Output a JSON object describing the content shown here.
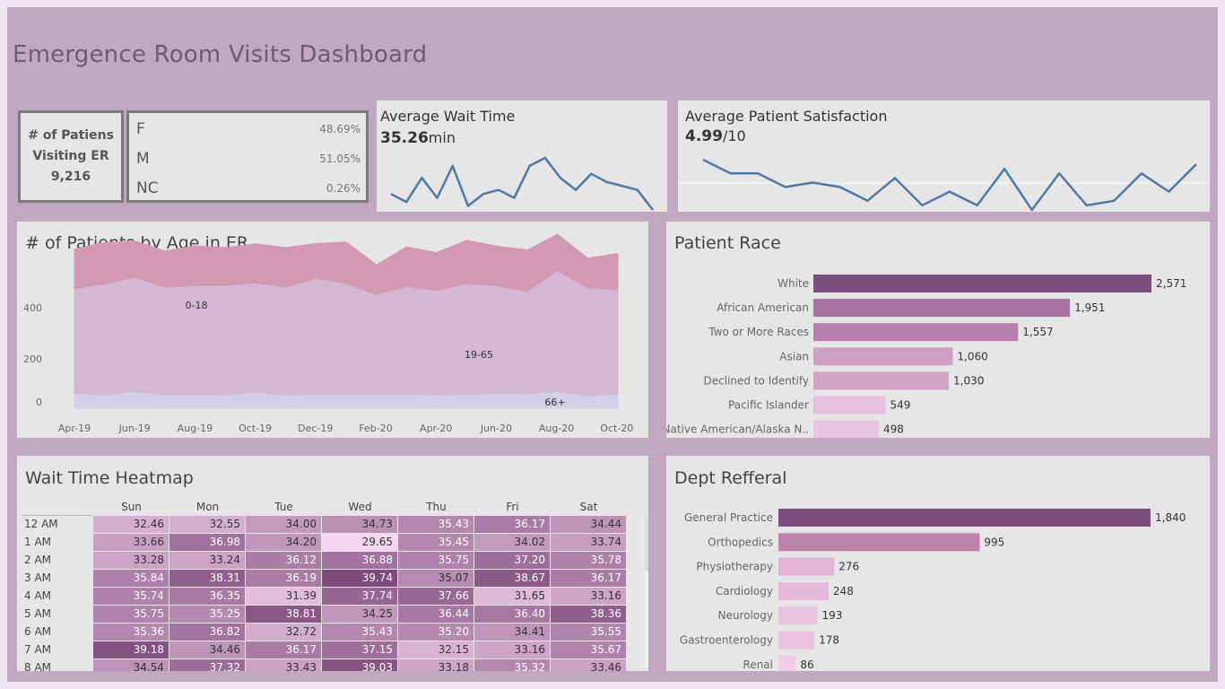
{
  "title": "Emergence Room Visits Dashboard",
  "kpi": {
    "count_label_1": "# of Patiens",
    "count_label_2": "Visiting ER",
    "count_value": "9,216",
    "gender": [
      {
        "label": "F",
        "pct": "48.69%"
      },
      {
        "label": "M",
        "pct": "51.05%"
      },
      {
        "label": "NC",
        "pct": "0.26%"
      }
    ],
    "wait_title": "Average Wait Time",
    "wait_value": "35.26",
    "wait_unit": "min",
    "wait_trend": [
      28,
      26,
      32,
      27,
      35,
      25,
      28,
      29,
      27,
      35,
      37,
      32,
      29,
      33,
      31,
      30,
      29,
      24
    ],
    "sat_title": "Average Patient Satisfaction",
    "sat_value": "4.99",
    "sat_unit": "/10",
    "sat_trend": [
      5.4,
      5.1,
      5.1,
      4.8,
      4.9,
      4.8,
      4.5,
      5.0,
      4.4,
      4.7,
      4.4,
      5.2,
      4.3,
      5.1,
      4.4,
      4.5,
      5.1,
      4.7,
      5.3
    ]
  },
  "age_panel": {
    "title": "# of Patients by Age in ER",
    "ytick_labels": [
      "400",
      "200",
      "0"
    ],
    "xtick_labels": [
      "Apr-19",
      "Jun-19",
      "Aug-19",
      "Oct-19",
      "Dec-19",
      "Feb-20",
      "Apr-20",
      "Jun-20",
      "Aug-20",
      "Oct-20"
    ],
    "band_labels": [
      "0-18",
      "19-65",
      "66+"
    ],
    "colors": {
      "young": "#d399b1",
      "adult": "#d4b7d2",
      "senior": "#d4d0ea"
    }
  },
  "race_panel": {
    "title": "Patient Race",
    "bars": [
      {
        "label": "White",
        "value": "2,571",
        "color": "#7d4d7c"
      },
      {
        "label": "African American",
        "value": "1,951",
        "color": "#a872a0"
      },
      {
        "label": "Two or More Races",
        "value": "1,557",
        "color": "#b881ab"
      },
      {
        "label": "Asian",
        "value": "1,060",
        "color": "#d09fc4"
      },
      {
        "label": "Declined to Identify",
        "value": "1,030",
        "color": "#d3a3c7"
      },
      {
        "label": "Pacific Islander",
        "value": "549",
        "color": "#e7c0dd"
      },
      {
        "label": "Native American/Alaska N..",
        "value": "498",
        "color": "#e9c4e0"
      }
    ]
  },
  "heatmap": {
    "title": "Wait Time Heatmap",
    "days": [
      "Sun",
      "Mon",
      "Tue",
      "Wed",
      "Thu",
      "Fri",
      "Sat"
    ],
    "hours": [
      "12 AM",
      "1 AM",
      "2 AM",
      "3 AM",
      "4 AM",
      "5 AM",
      "6 AM",
      "7 AM",
      "8 AM"
    ],
    "values": [
      [
        32.46,
        32.55,
        34.0,
        34.73,
        35.43,
        36.17,
        34.44
      ],
      [
        33.66,
        36.98,
        34.2,
        29.65,
        35.45,
        34.02,
        33.74
      ],
      [
        33.28,
        33.24,
        36.12,
        36.88,
        35.75,
        37.2,
        35.78
      ],
      [
        35.84,
        38.31,
        36.19,
        39.74,
        35.07,
        38.67,
        36.17
      ],
      [
        35.74,
        36.35,
        31.39,
        37.74,
        37.66,
        31.65,
        33.16
      ],
      [
        35.75,
        35.25,
        38.81,
        34.25,
        36.44,
        36.4,
        38.36
      ],
      [
        35.36,
        36.82,
        32.72,
        35.43,
        35.2,
        34.41,
        35.55
      ],
      [
        39.18,
        34.46,
        36.17,
        37.15,
        32.15,
        33.16,
        35.67
      ],
      [
        34.54,
        37.32,
        33.43,
        39.03,
        33.18,
        35.32,
        33.46
      ]
    ]
  },
  "dept_panel": {
    "title": "Dept Refferal",
    "bars": [
      {
        "label": "General Practice",
        "value": "1,840",
        "color": "#7d4d7c"
      },
      {
        "label": "Orthopedics",
        "value": "995",
        "color": "#bd83ad"
      },
      {
        "label": "Physiotherapy",
        "value": "276",
        "color": "#e4b4d7"
      },
      {
        "label": "Cardiology",
        "value": "248",
        "color": "#e6b8d9"
      },
      {
        "label": "Neurology",
        "value": "193",
        "color": "#eac1df"
      },
      {
        "label": "Gastroenterology",
        "value": "178",
        "color": "#ebc3e0"
      },
      {
        "label": "Renal",
        "value": "86",
        "color": "#efcde6"
      }
    ]
  },
  "chart_data": [
    {
      "type": "line",
      "title": "Average Wait Time",
      "series": [
        {
          "values": [
            28,
            26,
            32,
            27,
            35,
            25,
            28,
            29,
            27,
            35,
            37,
            32,
            29,
            33,
            31,
            30,
            29,
            24
          ]
        }
      ]
    },
    {
      "type": "line",
      "title": "Average Patient Satisfaction",
      "series": [
        {
          "values": [
            5.4,
            5.1,
            5.1,
            4.8,
            4.9,
            4.8,
            4.5,
            5.0,
            4.4,
            4.7,
            4.4,
            5.2,
            4.3,
            5.1,
            4.4,
            4.5,
            5.1,
            4.7,
            5.3
          ]
        }
      ]
    },
    {
      "type": "area",
      "title": "# of Patients by Age in ER",
      "x": [
        "Apr-19",
        "May-19",
        "Jun-19",
        "Jul-19",
        "Aug-19",
        "Sep-19",
        "Oct-19",
        "Nov-19",
        "Dec-19",
        "Jan-20",
        "Feb-20",
        "Mar-20",
        "Apr-20",
        "May-20",
        "Jun-20",
        "Jul-20",
        "Aug-20",
        "Sep-20",
        "Oct-20"
      ],
      "ylim": [
        0,
        480
      ],
      "series": [
        {
          "name": "66+",
          "values": [
            45,
            40,
            50,
            40,
            40,
            40,
            48,
            40,
            42,
            42,
            43,
            42,
            40,
            42,
            44,
            43,
            50,
            38,
            42
          ]
        },
        {
          "name": "19-65",
          "values": [
            315,
            335,
            345,
            325,
            330,
            330,
            330,
            325,
            350,
            335,
            300,
            325,
            315,
            335,
            325,
            310,
            365,
            325,
            315
          ]
        },
        {
          "name": "0-18",
          "values": [
            120,
            125,
            110,
            110,
            120,
            115,
            118,
            120,
            105,
            125,
            90,
            120,
            115,
            130,
            120,
            125,
            110,
            90,
            110
          ]
        }
      ]
    },
    {
      "type": "bar",
      "title": "Patient Race",
      "categories": [
        "White",
        "African American",
        "Two or More Races",
        "Asian",
        "Declined to Identify",
        "Pacific Islander",
        "Native American/Alaska N.."
      ],
      "values": [
        2571,
        1951,
        1557,
        1060,
        1030,
        549,
        498
      ]
    },
    {
      "type": "heatmap",
      "title": "Wait Time Heatmap",
      "x": [
        "Sun",
        "Mon",
        "Tue",
        "Wed",
        "Thu",
        "Fri",
        "Sat"
      ],
      "y": [
        "12 AM",
        "1 AM",
        "2 AM",
        "3 AM",
        "4 AM",
        "5 AM",
        "6 AM",
        "7 AM",
        "8 AM"
      ]
    },
    {
      "type": "bar",
      "title": "Dept Refferal",
      "categories": [
        "General Practice",
        "Orthopedics",
        "Physiotherapy",
        "Cardiology",
        "Neurology",
        "Gastroenterology",
        "Renal"
      ],
      "values": [
        1840,
        995,
        276,
        248,
        193,
        178,
        86
      ]
    }
  ]
}
